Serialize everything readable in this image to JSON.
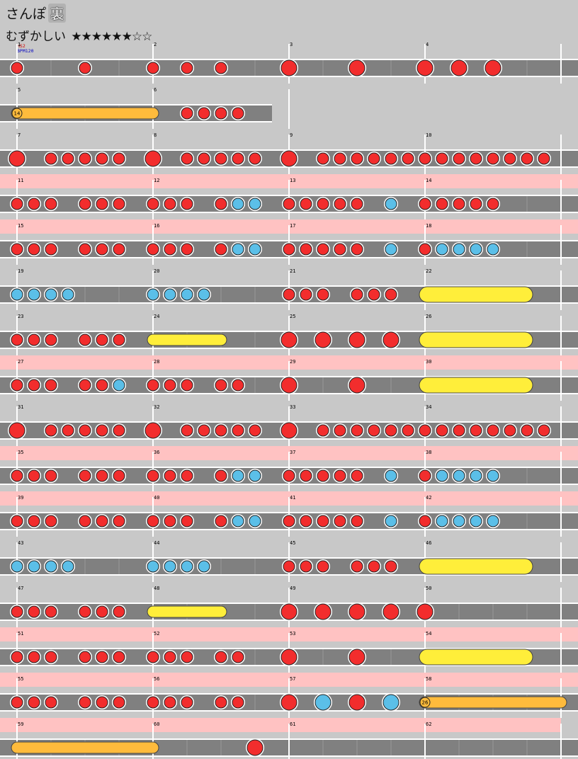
{
  "song": {
    "title": "さんぽ",
    "course": "裏",
    "difficulty_label": "むずかしい",
    "stars": "★★★★★★☆☆",
    "star_level": 6,
    "star_max": 8
  },
  "markers": {
    "hs": "HS2",
    "bpm": "BPM120"
  },
  "colors": {
    "background": "#c8c8c8",
    "gogo_band": "#ffc2c2",
    "lane": "#808080",
    "lane_border": "#ffffff",
    "don": "#f22d2d",
    "ka": "#5bbfe8",
    "drumroll": "#ffbb3c",
    "balloon_roll": "#ffee3a"
  },
  "chart_data": {
    "type": "taiko-score",
    "measures_per_row": 4,
    "total_measures": 62,
    "subdivisions_per_measure": 16,
    "rows": [
      {
        "measures": [
          1,
          2,
          3,
          4
        ],
        "gogo": false,
        "lane_beats": 16,
        "notes": [
          [
            0,
            "d"
          ],
          [
            4,
            "d"
          ],
          [
            8,
            "d"
          ],
          [
            10,
            "d"
          ],
          [
            12,
            "d"
          ],
          [
            16,
            "D"
          ],
          [
            20,
            "D"
          ],
          [
            24,
            "D"
          ],
          [
            26,
            "D"
          ],
          [
            28,
            "D"
          ]
        ],
        "rolls": []
      },
      {
        "measures": [
          5,
          6
        ],
        "gogo": false,
        "lane_beats": 7,
        "notes": [
          [
            10,
            "d"
          ],
          [
            11,
            "d"
          ],
          [
            12,
            "d"
          ],
          [
            13,
            "d"
          ]
        ],
        "rolls": [
          {
            "start": 0,
            "end": 8,
            "kind": "drumroll",
            "label": "14"
          }
        ]
      },
      {
        "measures": [
          7,
          8,
          9,
          10
        ],
        "gogo": false,
        "lane_beats": 16,
        "notes": [
          [
            0,
            "D"
          ],
          [
            2,
            "d"
          ],
          [
            3,
            "d"
          ],
          [
            4,
            "d"
          ],
          [
            5,
            "d"
          ],
          [
            6,
            "d"
          ],
          [
            8,
            "D"
          ],
          [
            10,
            "d"
          ],
          [
            11,
            "d"
          ],
          [
            12,
            "d"
          ],
          [
            13,
            "d"
          ],
          [
            14,
            "d"
          ],
          [
            16,
            "D"
          ],
          [
            18,
            "d"
          ],
          [
            19,
            "d"
          ],
          [
            20,
            "d"
          ],
          [
            21,
            "d"
          ],
          [
            22,
            "d"
          ],
          [
            23,
            "d"
          ],
          [
            24,
            "d"
          ],
          [
            25,
            "d"
          ],
          [
            26,
            "d"
          ],
          [
            27,
            "d"
          ],
          [
            28,
            "d"
          ],
          [
            29,
            "d"
          ],
          [
            30,
            "d"
          ],
          [
            31,
            "d"
          ]
        ],
        "rolls": []
      },
      {
        "measures": [
          11,
          12,
          13,
          14
        ],
        "gogo": true,
        "lane_beats": 16,
        "notes": [
          [
            0,
            "d"
          ],
          [
            1,
            "d"
          ],
          [
            2,
            "d"
          ],
          [
            4,
            "d"
          ],
          [
            5,
            "d"
          ],
          [
            6,
            "d"
          ],
          [
            8,
            "d"
          ],
          [
            9,
            "d"
          ],
          [
            10,
            "d"
          ],
          [
            12,
            "d"
          ],
          [
            13,
            "k"
          ],
          [
            14,
            "k"
          ],
          [
            16,
            "d"
          ],
          [
            17,
            "d"
          ],
          [
            18,
            "d"
          ],
          [
            19,
            "d"
          ],
          [
            20,
            "d"
          ],
          [
            22,
            "k"
          ],
          [
            24,
            "d"
          ],
          [
            25,
            "d"
          ],
          [
            26,
            "d"
          ],
          [
            27,
            "d"
          ],
          [
            28,
            "d"
          ]
        ],
        "rolls": []
      },
      {
        "measures": [
          15,
          16,
          17,
          18
        ],
        "gogo": true,
        "lane_beats": 16,
        "notes": [
          [
            0,
            "d"
          ],
          [
            1,
            "d"
          ],
          [
            2,
            "d"
          ],
          [
            4,
            "d"
          ],
          [
            5,
            "d"
          ],
          [
            6,
            "d"
          ],
          [
            8,
            "d"
          ],
          [
            9,
            "d"
          ],
          [
            10,
            "d"
          ],
          [
            12,
            "d"
          ],
          [
            13,
            "k"
          ],
          [
            14,
            "k"
          ],
          [
            16,
            "d"
          ],
          [
            17,
            "d"
          ],
          [
            18,
            "d"
          ],
          [
            19,
            "d"
          ],
          [
            20,
            "d"
          ],
          [
            22,
            "k"
          ],
          [
            24,
            "d"
          ],
          [
            25,
            "k"
          ],
          [
            26,
            "k"
          ],
          [
            27,
            "k"
          ],
          [
            28,
            "k"
          ]
        ],
        "rolls": []
      },
      {
        "measures": [
          19,
          20,
          21,
          22
        ],
        "gogo": false,
        "lane_beats": 16,
        "notes": [
          [
            0,
            "k"
          ],
          [
            1,
            "k"
          ],
          [
            2,
            "k"
          ],
          [
            3,
            "k"
          ],
          [
            8,
            "k"
          ],
          [
            9,
            "k"
          ],
          [
            10,
            "k"
          ],
          [
            11,
            "k"
          ],
          [
            16,
            "d"
          ],
          [
            17,
            "d"
          ],
          [
            18,
            "d"
          ],
          [
            20,
            "d"
          ],
          [
            21,
            "d"
          ],
          [
            22,
            "d"
          ]
        ],
        "rolls": [
          {
            "start": 24,
            "end": 30,
            "kind": "balloon",
            "label": ""
          }
        ]
      },
      {
        "measures": [
          23,
          24,
          25,
          26
        ],
        "gogo": false,
        "lane_beats": 16,
        "notes": [
          [
            0,
            "d"
          ],
          [
            1,
            "d"
          ],
          [
            2,
            "d"
          ],
          [
            4,
            "d"
          ],
          [
            5,
            "d"
          ],
          [
            6,
            "d"
          ],
          [
            16,
            "D"
          ],
          [
            18,
            "D"
          ],
          [
            20,
            "D"
          ],
          [
            22,
            "D"
          ]
        ],
        "rolls": [
          {
            "start": 8,
            "end": 12,
            "kind": "balloon",
            "label": ""
          },
          {
            "start": 24,
            "end": 30,
            "kind": "balloon",
            "label": ""
          }
        ]
      },
      {
        "measures": [
          27,
          28,
          29,
          30
        ],
        "gogo": true,
        "lane_beats": 16,
        "notes": [
          [
            0,
            "d"
          ],
          [
            1,
            "d"
          ],
          [
            2,
            "d"
          ],
          [
            4,
            "d"
          ],
          [
            5,
            "d"
          ],
          [
            6,
            "k"
          ],
          [
            8,
            "d"
          ],
          [
            9,
            "d"
          ],
          [
            10,
            "d"
          ],
          [
            12,
            "d"
          ],
          [
            13,
            "d"
          ],
          [
            16,
            "D"
          ],
          [
            20,
            "D"
          ]
        ],
        "rolls": [
          {
            "start": 24,
            "end": 30,
            "kind": "balloon",
            "label": ""
          }
        ]
      },
      {
        "measures": [
          31,
          32,
          33,
          34
        ],
        "gogo": false,
        "lane_beats": 16,
        "notes": [
          [
            0,
            "D"
          ],
          [
            2,
            "d"
          ],
          [
            3,
            "d"
          ],
          [
            4,
            "d"
          ],
          [
            5,
            "d"
          ],
          [
            6,
            "d"
          ],
          [
            8,
            "D"
          ],
          [
            10,
            "d"
          ],
          [
            11,
            "d"
          ],
          [
            12,
            "d"
          ],
          [
            13,
            "d"
          ],
          [
            14,
            "d"
          ],
          [
            16,
            "D"
          ],
          [
            18,
            "d"
          ],
          [
            19,
            "d"
          ],
          [
            20,
            "d"
          ],
          [
            21,
            "d"
          ],
          [
            22,
            "d"
          ],
          [
            23,
            "d"
          ],
          [
            24,
            "d"
          ],
          [
            25,
            "d"
          ],
          [
            26,
            "d"
          ],
          [
            27,
            "d"
          ],
          [
            28,
            "d"
          ],
          [
            29,
            "d"
          ],
          [
            30,
            "d"
          ],
          [
            31,
            "d"
          ]
        ],
        "rolls": []
      },
      {
        "measures": [
          35,
          36,
          37,
          38
        ],
        "gogo": true,
        "lane_beats": 16,
        "notes": [
          [
            0,
            "d"
          ],
          [
            1,
            "d"
          ],
          [
            2,
            "d"
          ],
          [
            4,
            "d"
          ],
          [
            5,
            "d"
          ],
          [
            6,
            "d"
          ],
          [
            8,
            "d"
          ],
          [
            9,
            "d"
          ],
          [
            10,
            "d"
          ],
          [
            12,
            "d"
          ],
          [
            13,
            "k"
          ],
          [
            14,
            "k"
          ],
          [
            16,
            "d"
          ],
          [
            17,
            "d"
          ],
          [
            18,
            "d"
          ],
          [
            19,
            "d"
          ],
          [
            20,
            "d"
          ],
          [
            22,
            "k"
          ],
          [
            24,
            "d"
          ],
          [
            25,
            "k"
          ],
          [
            26,
            "k"
          ],
          [
            27,
            "k"
          ],
          [
            28,
            "k"
          ]
        ],
        "rolls": []
      },
      {
        "measures": [
          39,
          40,
          41,
          42
        ],
        "gogo": true,
        "lane_beats": 16,
        "notes": [
          [
            0,
            "d"
          ],
          [
            1,
            "d"
          ],
          [
            2,
            "d"
          ],
          [
            4,
            "d"
          ],
          [
            5,
            "d"
          ],
          [
            6,
            "d"
          ],
          [
            8,
            "d"
          ],
          [
            9,
            "d"
          ],
          [
            10,
            "d"
          ],
          [
            12,
            "d"
          ],
          [
            13,
            "k"
          ],
          [
            14,
            "k"
          ],
          [
            16,
            "d"
          ],
          [
            17,
            "d"
          ],
          [
            18,
            "d"
          ],
          [
            19,
            "d"
          ],
          [
            20,
            "d"
          ],
          [
            22,
            "k"
          ],
          [
            24,
            "d"
          ],
          [
            25,
            "k"
          ],
          [
            26,
            "k"
          ],
          [
            27,
            "k"
          ],
          [
            28,
            "k"
          ]
        ],
        "rolls": []
      },
      {
        "measures": [
          43,
          44,
          45,
          46
        ],
        "gogo": false,
        "lane_beats": 16,
        "notes": [
          [
            0,
            "k"
          ],
          [
            1,
            "k"
          ],
          [
            2,
            "k"
          ],
          [
            3,
            "k"
          ],
          [
            8,
            "k"
          ],
          [
            9,
            "k"
          ],
          [
            10,
            "k"
          ],
          [
            11,
            "k"
          ],
          [
            16,
            "d"
          ],
          [
            17,
            "d"
          ],
          [
            18,
            "d"
          ],
          [
            20,
            "d"
          ],
          [
            21,
            "d"
          ],
          [
            22,
            "d"
          ]
        ],
        "rolls": [
          {
            "start": 24,
            "end": 30,
            "kind": "balloon",
            "label": ""
          }
        ]
      },
      {
        "measures": [
          47,
          48,
          49,
          50
        ],
        "gogo": false,
        "lane_beats": 16,
        "notes": [
          [
            0,
            "d"
          ],
          [
            1,
            "d"
          ],
          [
            2,
            "d"
          ],
          [
            4,
            "d"
          ],
          [
            5,
            "d"
          ],
          [
            6,
            "d"
          ],
          [
            16,
            "D"
          ],
          [
            18,
            "D"
          ],
          [
            20,
            "D"
          ],
          [
            22,
            "D"
          ],
          [
            24,
            "D"
          ]
        ],
        "rolls": [
          {
            "start": 8,
            "end": 12,
            "kind": "balloon",
            "label": ""
          }
        ]
      },
      {
        "measures": [
          51,
          52,
          53,
          54
        ],
        "gogo": true,
        "lane_beats": 16,
        "notes": [
          [
            0,
            "d"
          ],
          [
            1,
            "d"
          ],
          [
            2,
            "d"
          ],
          [
            4,
            "d"
          ],
          [
            5,
            "d"
          ],
          [
            6,
            "d"
          ],
          [
            8,
            "d"
          ],
          [
            9,
            "d"
          ],
          [
            10,
            "d"
          ],
          [
            12,
            "d"
          ],
          [
            13,
            "d"
          ],
          [
            16,
            "D"
          ],
          [
            20,
            "D"
          ]
        ],
        "rolls": [
          {
            "start": 24,
            "end": 30,
            "kind": "balloon",
            "label": ""
          }
        ]
      },
      {
        "measures": [
          55,
          56,
          57,
          58
        ],
        "gogo": true,
        "lane_beats": 16,
        "notes": [
          [
            0,
            "d"
          ],
          [
            1,
            "d"
          ],
          [
            2,
            "d"
          ],
          [
            4,
            "d"
          ],
          [
            5,
            "d"
          ],
          [
            6,
            "d"
          ],
          [
            8,
            "d"
          ],
          [
            9,
            "d"
          ],
          [
            10,
            "d"
          ],
          [
            12,
            "d"
          ],
          [
            13,
            "d"
          ],
          [
            16,
            "D"
          ],
          [
            18,
            "K"
          ],
          [
            20,
            "D"
          ],
          [
            22,
            "K"
          ]
        ],
        "rolls": [
          {
            "start": 24,
            "end": 32,
            "kind": "drumroll",
            "label": "26"
          }
        ]
      },
      {
        "measures": [
          59,
          60,
          61,
          62
        ],
        "gogo": true,
        "gogo_end": 16,
        "lane_beats": 16,
        "notes": [
          [
            14,
            "D"
          ]
        ],
        "rolls": [
          {
            "start": 0,
            "end": 8,
            "kind": "drumroll",
            "label": ""
          }
        ]
      }
    ]
  }
}
